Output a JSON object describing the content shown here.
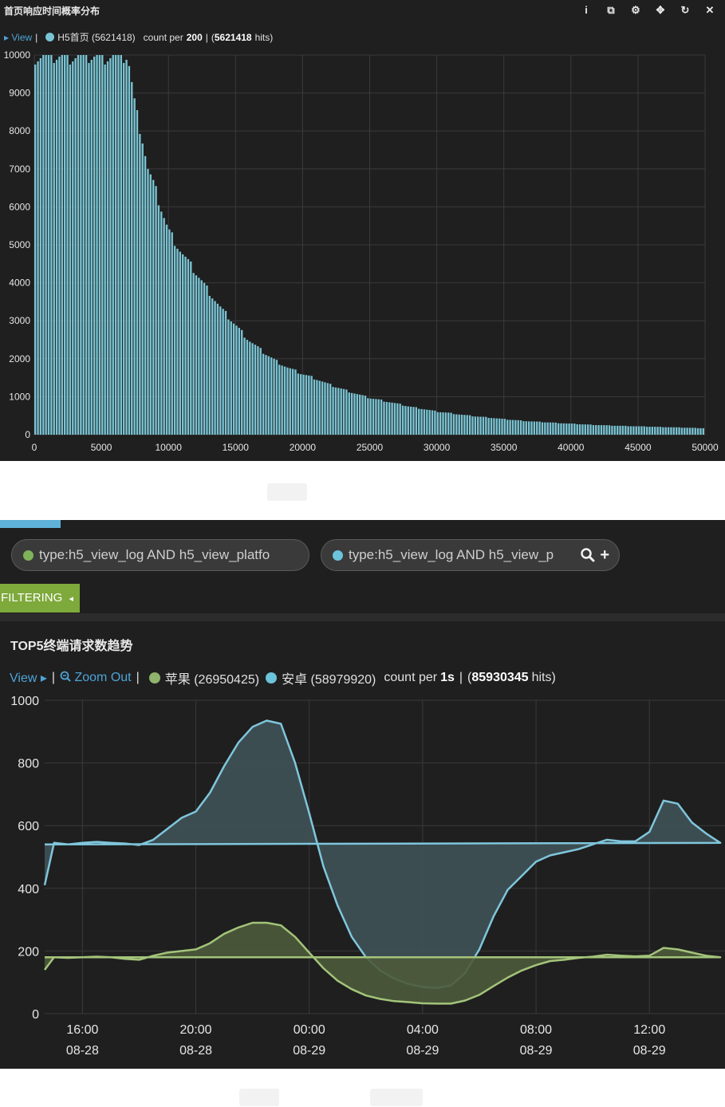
{
  "panel1": {
    "title": "首页响应时间概率分布",
    "toolbar": {
      "info_icon": "i",
      "duplicate_icon": "⧉",
      "gear_icon": "⚙",
      "move_icon": "✥",
      "refresh_icon": "↻",
      "close_icon": "✕"
    },
    "legend": {
      "view_label": "View",
      "series_label": "H5首页 (5621418)",
      "count_prefix": "count per",
      "interval": "200",
      "total_prefix": "(",
      "total": "5621418",
      "total_suffix": "hits)"
    }
  },
  "panel2": {
    "queries": [
      {
        "text": "type:h5_view_log AND h5_view_platfo",
        "color": "#7fb35a"
      },
      {
        "text": "type:h5_view_log AND h5_view_p",
        "color": "#6cc3dc"
      }
    ],
    "query_icons": {
      "search": "🔍",
      "add": "+"
    },
    "filtering_label": "FILTERING",
    "filtering_arrow": "◂",
    "title": "TOP5终端请求数趋势",
    "legend": {
      "view_label": "View",
      "zoom_out_label": "Zoom Out",
      "series": [
        {
          "label": "苹果 (26950425)",
          "color": "#8fb36a"
        },
        {
          "label": "安卓 (58979920)",
          "color": "#6cc3dc"
        }
      ],
      "count_prefix": "count per",
      "interval": "1s",
      "total_prefix": "(",
      "total": "85930345",
      "total_suffix": "hits)"
    }
  },
  "colors": {
    "panel_bg": "#1f1f1f",
    "bar": "#79c4d4",
    "android_line": "#7fc6dc",
    "android_fill": "#3f5258",
    "apple_line": "#a3c47a",
    "apple_fill": "#4c5a3a",
    "link": "#4ea3d6",
    "filtering_bg": "#7ea93b"
  },
  "chart_data": [
    {
      "type": "bar",
      "title": "首页响应时间概率分布",
      "xlim": [
        0,
        50000
      ],
      "ylim": [
        0,
        10000
      ],
      "bin_width": 200,
      "x_ticks": [
        "0",
        "5000",
        "10000",
        "15000",
        "20000",
        "25000",
        "30000",
        "35000",
        "40000",
        "45000",
        "50000"
      ],
      "y_ticks": [
        "0",
        "1000",
        "2000",
        "3000",
        "4000",
        "5000",
        "6000",
        "7000",
        "8000",
        "9000",
        "10000"
      ],
      "profile_points": [
        [
          0,
          10000
        ],
        [
          7000,
          10000
        ],
        [
          7200,
          9500
        ],
        [
          7600,
          8500
        ],
        [
          8000,
          8000
        ],
        [
          8500,
          7000
        ],
        [
          9000,
          6500
        ],
        [
          10000,
          5400
        ],
        [
          11000,
          4800
        ],
        [
          12000,
          4300
        ],
        [
          13000,
          3800
        ],
        [
          14000,
          3300
        ],
        [
          15000,
          2900
        ],
        [
          16000,
          2500
        ],
        [
          17000,
          2200
        ],
        [
          18000,
          1950
        ],
        [
          19000,
          1750
        ],
        [
          20000,
          1600
        ],
        [
          21000,
          1480
        ],
        [
          22000,
          1320
        ],
        [
          23000,
          1200
        ],
        [
          24000,
          1080
        ],
        [
          25000,
          970
        ],
        [
          26000,
          900
        ],
        [
          27000,
          820
        ],
        [
          28000,
          740
        ],
        [
          29000,
          680
        ],
        [
          30000,
          610
        ],
        [
          31000,
          570
        ],
        [
          32000,
          520
        ],
        [
          33000,
          480
        ],
        [
          34000,
          450
        ],
        [
          35000,
          410
        ],
        [
          36000,
          380
        ],
        [
          37000,
          350
        ],
        [
          38000,
          330
        ],
        [
          39000,
          310
        ],
        [
          40000,
          290
        ],
        [
          41000,
          270
        ],
        [
          42000,
          255
        ],
        [
          43000,
          240
        ],
        [
          44000,
          230
        ],
        [
          45000,
          220
        ],
        [
          46000,
          210
        ],
        [
          47000,
          200
        ],
        [
          48000,
          190
        ],
        [
          49000,
          180
        ],
        [
          50000,
          170
        ]
      ],
      "grid": true
    },
    {
      "type": "area",
      "title": "TOP5终端请求数趋势",
      "x_ticks": [
        [
          "16:00",
          "08-28"
        ],
        [
          "20:00",
          "08-28"
        ],
        [
          "00:00",
          "08-29"
        ],
        [
          "04:00",
          "08-29"
        ],
        [
          "08:00",
          "08-29"
        ],
        [
          "12:00",
          "08-29"
        ]
      ],
      "x_start": "2017-08-28 14:40",
      "x_end": "2017-08-29 14:40",
      "ylim": [
        0,
        1000
      ],
      "y_ticks": [
        "0",
        "200",
        "400",
        "600",
        "800",
        "1000"
      ],
      "grid": true,
      "series": [
        {
          "name": "安卓 (58979920)",
          "x": [
            "14:40",
            "15:00",
            "15:30",
            "16:00",
            "16:30",
            "17:00",
            "17:30",
            "18:00",
            "18:30",
            "19:00",
            "19:30",
            "20:00",
            "20:30",
            "21:00",
            "21:30",
            "22:00",
            "22:30",
            "23:00",
            "23:30",
            "00:00",
            "00:30",
            "01:00",
            "01:30",
            "02:00",
            "02:30",
            "03:00",
            "03:30",
            "04:00",
            "04:30",
            "05:00",
            "05:30",
            "06:00",
            "06:30",
            "07:00",
            "07:30",
            "08:00",
            "08:30",
            "09:00",
            "09:30",
            "10:00",
            "10:30",
            "11:00",
            "11:30",
            "12:00",
            "12:30",
            "13:00",
            "13:30",
            "14:00",
            "14:30",
            "14:40"
          ],
          "values": [
            410,
            545,
            540,
            545,
            548,
            545,
            543,
            538,
            555,
            590,
            625,
            645,
            705,
            790,
            865,
            915,
            935,
            925,
            800,
            640,
            470,
            345,
            245,
            180,
            138,
            112,
            95,
            85,
            82,
            90,
            130,
            205,
            310,
            395,
            440,
            485,
            505,
            515,
            525,
            540,
            555,
            550,
            550,
            580,
            680,
            670,
            610,
            575,
            545,
            540
          ]
        },
        {
          "name": "苹果 (26950425)",
          "x": [
            "14:40",
            "15:00",
            "15:30",
            "16:00",
            "16:30",
            "17:00",
            "17:30",
            "18:00",
            "18:30",
            "19:00",
            "19:30",
            "20:00",
            "20:30",
            "21:00",
            "21:30",
            "22:00",
            "22:30",
            "23:00",
            "23:30",
            "00:00",
            "00:30",
            "01:00",
            "01:30",
            "02:00",
            "02:30",
            "03:00",
            "03:30",
            "04:00",
            "04:30",
            "05:00",
            "05:30",
            "06:00",
            "06:30",
            "07:00",
            "07:30",
            "08:00",
            "08:30",
            "09:00",
            "09:30",
            "10:00",
            "10:30",
            "11:00",
            "11:30",
            "12:00",
            "12:30",
            "13:00",
            "13:30",
            "14:00",
            "14:30",
            "14:40"
          ],
          "values": [
            140,
            180,
            178,
            180,
            182,
            180,
            175,
            172,
            185,
            195,
            200,
            205,
            225,
            255,
            275,
            290,
            290,
            282,
            245,
            195,
            145,
            105,
            78,
            58,
            47,
            40,
            37,
            33,
            32,
            32,
            42,
            60,
            88,
            115,
            138,
            155,
            168,
            172,
            178,
            182,
            188,
            185,
            183,
            185,
            210,
            205,
            195,
            185,
            180,
            180
          ]
        }
      ]
    }
  ]
}
